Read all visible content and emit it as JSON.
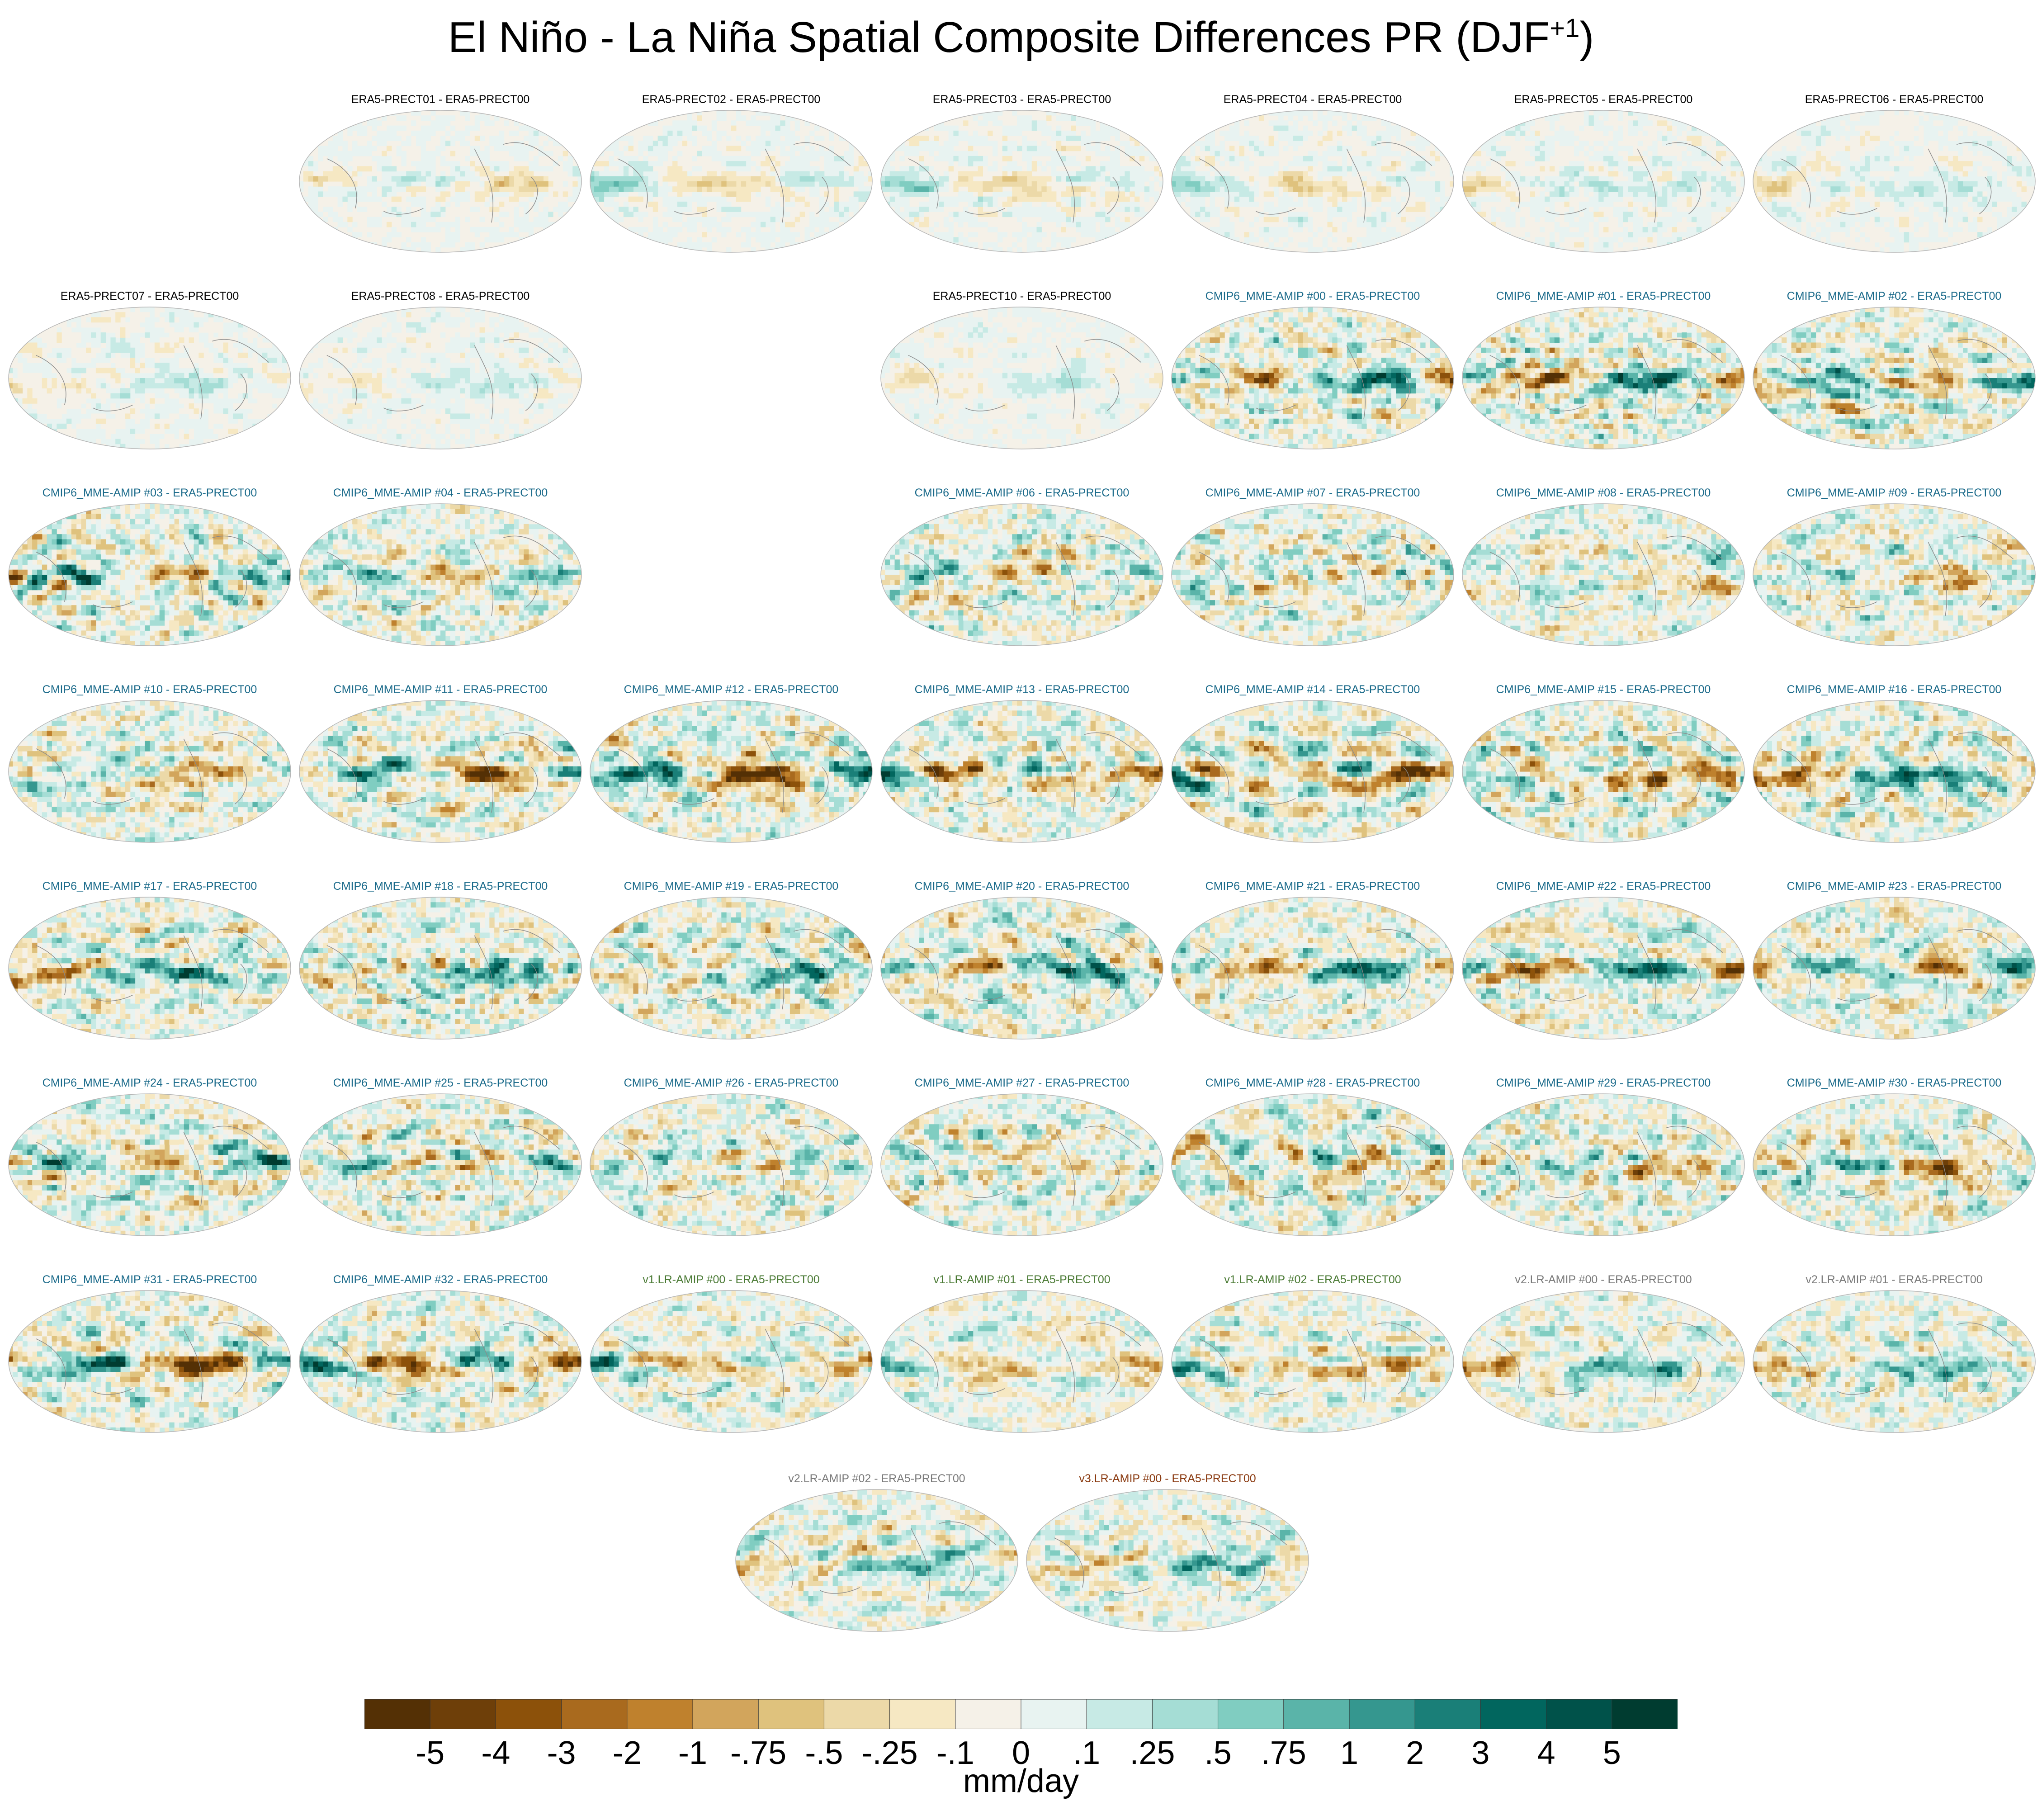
{
  "title": {
    "main": "El Niño - La Niña Spatial Composite Differences PR (DJF",
    "superscript": "+1",
    "closing": ")"
  },
  "label_colors": {
    "ERA5": "#000000",
    "CMIP6": "#1a6a8a",
    "v1": "#4a7a34",
    "v2": "#7a7a7a",
    "v3": "#8a3a10"
  },
  "chart_data": {
    "type": "heatmap",
    "description_kind": "global map panels (Robinson projection), El Niño minus La Niña precipitation difference",
    "panels": [
      {
        "label": "ERA5-PRECT01 - ERA5-PRECT00",
        "group": "ERA5",
        "row": 0,
        "col": 1
      },
      {
        "label": "ERA5-PRECT02 - ERA5-PRECT00",
        "group": "ERA5",
        "row": 0,
        "col": 2
      },
      {
        "label": "ERA5-PRECT03 - ERA5-PRECT00",
        "group": "ERA5",
        "row": 0,
        "col": 3
      },
      {
        "label": "ERA5-PRECT04 - ERA5-PRECT00",
        "group": "ERA5",
        "row": 0,
        "col": 4
      },
      {
        "label": "ERA5-PRECT05 - ERA5-PRECT00",
        "group": "ERA5",
        "row": 0,
        "col": 5
      },
      {
        "label": "ERA5-PRECT06 - ERA5-PRECT00",
        "group": "ERA5",
        "row": 0,
        "col": 6
      },
      {
        "label": "ERA5-PRECT07 - ERA5-PRECT00",
        "group": "ERA5",
        "row": 1,
        "col": 0
      },
      {
        "label": "ERA5-PRECT08 - ERA5-PRECT00",
        "group": "ERA5",
        "row": 1,
        "col": 1
      },
      {
        "label": "ERA5-PRECT10 - ERA5-PRECT00",
        "group": "ERA5",
        "row": 1,
        "col": 3
      },
      {
        "label": "CMIP6_MME-AMIP  #00 - ERA5-PRECT00",
        "group": "CMIP6",
        "row": 1,
        "col": 4
      },
      {
        "label": "CMIP6_MME-AMIP  #01 - ERA5-PRECT00",
        "group": "CMIP6",
        "row": 1,
        "col": 5
      },
      {
        "label": "CMIP6_MME-AMIP  #02 - ERA5-PRECT00",
        "group": "CMIP6",
        "row": 1,
        "col": 6
      },
      {
        "label": "CMIP6_MME-AMIP  #03 - ERA5-PRECT00",
        "group": "CMIP6",
        "row": 2,
        "col": 0
      },
      {
        "label": "CMIP6_MME-AMIP  #04 - ERA5-PRECT00",
        "group": "CMIP6",
        "row": 2,
        "col": 1
      },
      {
        "label": "CMIP6_MME-AMIP  #06 - ERA5-PRECT00",
        "group": "CMIP6",
        "row": 2,
        "col": 3
      },
      {
        "label": "CMIP6_MME-AMIP  #07 - ERA5-PRECT00",
        "group": "CMIP6",
        "row": 2,
        "col": 4
      },
      {
        "label": "CMIP6_MME-AMIP  #08 - ERA5-PRECT00",
        "group": "CMIP6",
        "row": 2,
        "col": 5
      },
      {
        "label": "CMIP6_MME-AMIP  #09 - ERA5-PRECT00",
        "group": "CMIP6",
        "row": 2,
        "col": 6
      },
      {
        "label": "CMIP6_MME-AMIP  #10 - ERA5-PRECT00",
        "group": "CMIP6",
        "row": 3,
        "col": 0
      },
      {
        "label": "CMIP6_MME-AMIP  #11 - ERA5-PRECT00",
        "group": "CMIP6",
        "row": 3,
        "col": 1
      },
      {
        "label": "CMIP6_MME-AMIP  #12 - ERA5-PRECT00",
        "group": "CMIP6",
        "row": 3,
        "col": 2
      },
      {
        "label": "CMIP6_MME-AMIP  #13 - ERA5-PRECT00",
        "group": "CMIP6",
        "row": 3,
        "col": 3
      },
      {
        "label": "CMIP6_MME-AMIP  #14 - ERA5-PRECT00",
        "group": "CMIP6",
        "row": 3,
        "col": 4
      },
      {
        "label": "CMIP6_MME-AMIP  #15 - ERA5-PRECT00",
        "group": "CMIP6",
        "row": 3,
        "col": 5
      },
      {
        "label": "CMIP6_MME-AMIP  #16 - ERA5-PRECT00",
        "group": "CMIP6",
        "row": 3,
        "col": 6
      },
      {
        "label": "CMIP6_MME-AMIP  #17 - ERA5-PRECT00",
        "group": "CMIP6",
        "row": 4,
        "col": 0
      },
      {
        "label": "CMIP6_MME-AMIP  #18 - ERA5-PRECT00",
        "group": "CMIP6",
        "row": 4,
        "col": 1
      },
      {
        "label": "CMIP6_MME-AMIP  #19 - ERA5-PRECT00",
        "group": "CMIP6",
        "row": 4,
        "col": 2
      },
      {
        "label": "CMIP6_MME-AMIP  #20 - ERA5-PRECT00",
        "group": "CMIP6",
        "row": 4,
        "col": 3
      },
      {
        "label": "CMIP6_MME-AMIP  #21 - ERA5-PRECT00",
        "group": "CMIP6",
        "row": 4,
        "col": 4
      },
      {
        "label": "CMIP6_MME-AMIP  #22 - ERA5-PRECT00",
        "group": "CMIP6",
        "row": 4,
        "col": 5
      },
      {
        "label": "CMIP6_MME-AMIP  #23 - ERA5-PRECT00",
        "group": "CMIP6",
        "row": 4,
        "col": 6
      },
      {
        "label": "CMIP6_MME-AMIP  #24 - ERA5-PRECT00",
        "group": "CMIP6",
        "row": 5,
        "col": 0
      },
      {
        "label": "CMIP6_MME-AMIP  #25 - ERA5-PRECT00",
        "group": "CMIP6",
        "row": 5,
        "col": 1
      },
      {
        "label": "CMIP6_MME-AMIP  #26 - ERA5-PRECT00",
        "group": "CMIP6",
        "row": 5,
        "col": 2
      },
      {
        "label": "CMIP6_MME-AMIP  #27 - ERA5-PRECT00",
        "group": "CMIP6",
        "row": 5,
        "col": 3
      },
      {
        "label": "CMIP6_MME-AMIP  #28 - ERA5-PRECT00",
        "group": "CMIP6",
        "row": 5,
        "col": 4
      },
      {
        "label": "CMIP6_MME-AMIP  #29 - ERA5-PRECT00",
        "group": "CMIP6",
        "row": 5,
        "col": 5
      },
      {
        "label": "CMIP6_MME-AMIP  #30 - ERA5-PRECT00",
        "group": "CMIP6",
        "row": 5,
        "col": 6
      },
      {
        "label": "CMIP6_MME-AMIP  #31 - ERA5-PRECT00",
        "group": "CMIP6",
        "row": 6,
        "col": 0
      },
      {
        "label": "CMIP6_MME-AMIP  #32 - ERA5-PRECT00",
        "group": "CMIP6",
        "row": 6,
        "col": 1
      },
      {
        "label": "v1.LR-AMIP  #00 - ERA5-PRECT00",
        "group": "v1",
        "row": 6,
        "col": 2
      },
      {
        "label": "v1.LR-AMIP  #01 - ERA5-PRECT00",
        "group": "v1",
        "row": 6,
        "col": 3
      },
      {
        "label": "v1.LR-AMIP  #02 - ERA5-PRECT00",
        "group": "v1",
        "row": 6,
        "col": 4
      },
      {
        "label": "v2.LR-AMIP  #00 - ERA5-PRECT00",
        "group": "v2",
        "row": 6,
        "col": 5
      },
      {
        "label": "v2.LR-AMIP  #01 - ERA5-PRECT00",
        "group": "v2",
        "row": 6,
        "col": 6
      },
      {
        "label": "v2.LR-AMIP  #02 - ERA5-PRECT00",
        "group": "v2",
        "row": 7,
        "col": 0
      },
      {
        "label": "v3.LR-AMIP  #00 - ERA5-PRECT00",
        "group": "v3",
        "row": 7,
        "col": 1
      }
    ],
    "colorbar": {
      "ticks": [
        "-5",
        "-4",
        "-3",
        "-2",
        "-1",
        "-.75",
        "-.5",
        "-.25",
        "-.1",
        "0",
        ".1",
        ".25",
        ".5",
        ".75",
        "1",
        "2",
        "3",
        "4",
        "5"
      ],
      "colors": [
        "#543005",
        "#6e3f09",
        "#8c510a",
        "#a96a1e",
        "#bf812d",
        "#d2a55c",
        "#dfc27d",
        "#ecd9a8",
        "#f6e8c3",
        "#f5f1e8",
        "#e8f3f1",
        "#c7eae5",
        "#a5ddd5",
        "#80cdc1",
        "#5ab4a9",
        "#35978f",
        "#1a7f78",
        "#01665e",
        "#00524a",
        "#003c30"
      ],
      "units": "mm/day",
      "range": [
        -5,
        5
      ]
    }
  }
}
